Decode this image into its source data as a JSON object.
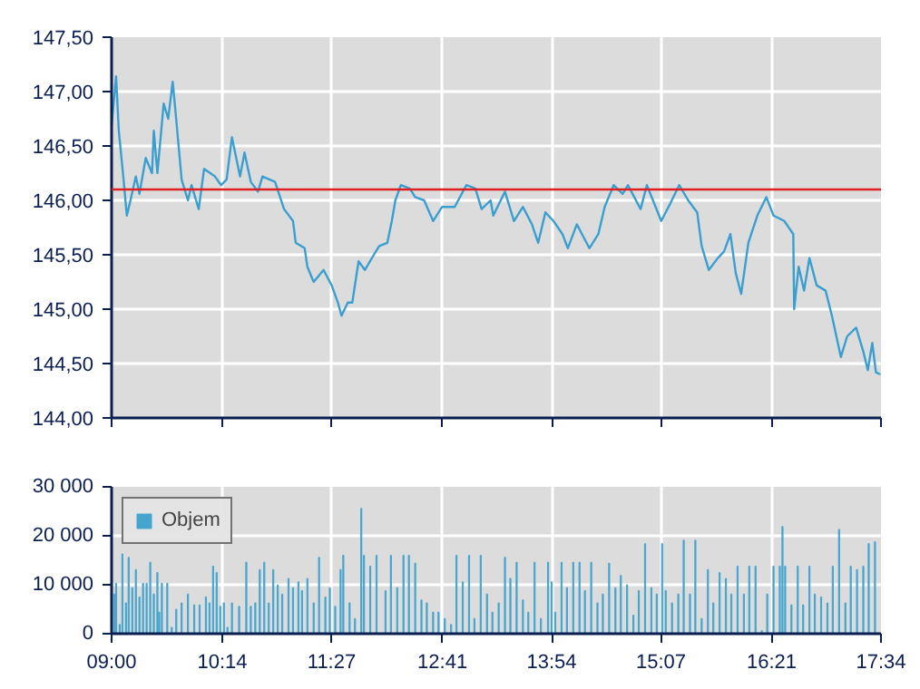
{
  "chart_data": [
    {
      "type": "line",
      "color": "#3a9fd0",
      "xlim": [
        9.0,
        17.5667
      ],
      "ylim": [
        144.0,
        147.5
      ],
      "xticks": [
        {
          "value": 9.0,
          "label": null
        },
        {
          "value": 10.2333,
          "label": null
        },
        {
          "value": 11.45,
          "label": null
        },
        {
          "value": 12.6833,
          "label": null
        },
        {
          "value": 13.9,
          "label": null
        },
        {
          "value": 15.1167,
          "label": null
        },
        {
          "value": 16.35,
          "label": null
        },
        {
          "value": 17.5667,
          "label": null
        }
      ],
      "yticks": [
        {
          "value": 144.0,
          "label": "144,00"
        },
        {
          "value": 144.5,
          "label": "144,50"
        },
        {
          "value": 145.0,
          "label": "145,00"
        },
        {
          "value": 145.5,
          "label": "145,50"
        },
        {
          "value": 146.0,
          "label": "146,00"
        },
        {
          "value": 146.5,
          "label": "146,50"
        },
        {
          "value": 147.0,
          "label": "147,00"
        },
        {
          "value": 147.5,
          "label": "147,50"
        }
      ],
      "tick_labels": "y",
      "grid": true,
      "ref_lines": [
        {
          "axis": "y",
          "value": 146.1,
          "color": "#e02020"
        }
      ],
      "x": [
        9.0,
        9.05,
        9.08,
        9.13,
        9.17,
        9.21,
        9.27,
        9.31,
        9.38,
        9.45,
        9.47,
        9.51,
        9.58,
        9.63,
        9.68,
        9.71,
        9.78,
        9.85,
        9.89,
        9.97,
        10.03,
        10.15,
        10.22,
        10.28,
        10.34,
        10.43,
        10.48,
        10.55,
        10.63,
        10.68,
        10.82,
        10.92,
        11.02,
        11.05,
        11.15,
        11.18,
        11.25,
        11.36,
        11.45,
        11.52,
        11.56,
        11.63,
        11.68,
        11.75,
        11.82,
        11.92,
        11.98,
        12.07,
        12.12,
        12.16,
        12.22,
        12.32,
        12.38,
        12.48,
        12.58,
        12.68,
        12.82,
        12.95,
        13.05,
        13.12,
        13.22,
        13.25,
        13.38,
        13.48,
        13.58,
        13.68,
        13.75,
        13.83,
        13.92,
        14.02,
        14.08,
        14.18,
        14.32,
        14.42,
        14.49,
        14.59,
        14.69,
        14.75,
        14.89,
        14.96,
        15.12,
        15.22,
        15.32,
        15.42,
        15.52,
        15.57,
        15.65,
        15.75,
        15.82,
        15.89,
        15.95,
        16.01,
        16.09,
        16.19,
        16.29,
        16.37,
        16.49,
        16.59,
        16.6,
        16.65,
        16.71,
        16.77,
        16.85,
        16.95,
        17.02,
        17.12,
        17.19,
        17.29,
        17.37,
        17.42,
        17.47,
        17.51,
        17.56
      ],
      "values": [
        146.69,
        147.14,
        146.64,
        146.22,
        145.86,
        146.0,
        146.22,
        146.06,
        146.39,
        146.25,
        146.64,
        146.25,
        146.89,
        146.75,
        147.09,
        146.83,
        146.19,
        146.0,
        146.14,
        145.92,
        146.29,
        146.22,
        146.14,
        146.19,
        146.58,
        146.22,
        146.44,
        146.17,
        146.08,
        146.22,
        146.17,
        145.92,
        145.81,
        145.61,
        145.56,
        145.39,
        145.25,
        145.36,
        145.22,
        145.06,
        144.94,
        145.06,
        145.06,
        145.44,
        145.36,
        145.5,
        145.58,
        145.61,
        145.81,
        146.0,
        146.14,
        146.11,
        146.03,
        146.0,
        145.81,
        145.94,
        145.94,
        146.14,
        146.11,
        145.92,
        146.0,
        145.86,
        146.08,
        145.81,
        145.94,
        145.78,
        145.61,
        145.89,
        145.81,
        145.69,
        145.56,
        145.78,
        145.56,
        145.69,
        145.94,
        146.14,
        146.06,
        146.14,
        145.92,
        146.14,
        145.81,
        145.97,
        146.14,
        146.0,
        145.89,
        145.58,
        145.36,
        145.47,
        145.53,
        145.69,
        145.33,
        145.14,
        145.61,
        145.86,
        146.03,
        145.86,
        145.81,
        145.69,
        145.0,
        145.39,
        145.17,
        145.47,
        145.22,
        145.17,
        144.94,
        144.56,
        144.75,
        144.83,
        144.61,
        144.44,
        144.69,
        144.42,
        144.4
      ]
    },
    {
      "type": "bar",
      "xlim": [
        9.0,
        17.5667
      ],
      "ylim": [
        0,
        30000
      ],
      "xticks": [
        {
          "value": 9.0,
          "label": "09:00"
        },
        {
          "value": 10.2333,
          "label": "10:14"
        },
        {
          "value": 11.45,
          "label": "11:27"
        },
        {
          "value": 12.6833,
          "label": "12:41"
        },
        {
          "value": 13.9,
          "label": "13:54"
        },
        {
          "value": 15.1167,
          "label": "15:07"
        },
        {
          "value": 16.35,
          "label": "16:21"
        },
        {
          "value": 17.5667,
          "label": "17:34"
        }
      ],
      "yticks": [
        {
          "value": 0,
          "label": "0"
        },
        {
          "value": 10000,
          "label": "10 000"
        },
        {
          "value": 20000,
          "label": "20 000"
        },
        {
          "value": 30000,
          "label": "30 000"
        }
      ],
      "grid": true,
      "legend": "top left",
      "x": [
        9.03,
        9.05,
        9.09,
        9.12,
        9.16,
        9.19,
        9.23,
        9.27,
        9.31,
        9.35,
        9.39,
        9.43,
        9.47,
        9.51,
        9.53,
        9.56,
        9.62,
        9.67,
        9.72,
        9.78,
        9.85,
        9.92,
        9.98,
        10.05,
        10.09,
        10.13,
        10.17,
        10.21,
        10.25,
        10.29,
        10.34,
        10.42,
        10.5,
        10.55,
        10.6,
        10.65,
        10.7,
        10.75,
        10.8,
        10.85,
        10.9,
        10.97,
        11.02,
        11.08,
        11.12,
        11.18,
        11.25,
        11.31,
        11.38,
        11.43,
        11.49,
        11.55,
        11.58,
        11.65,
        11.71,
        11.78,
        11.81,
        11.88,
        11.95,
        12.05,
        12.11,
        12.18,
        12.25,
        12.31,
        12.38,
        12.45,
        12.51,
        12.58,
        12.64,
        12.71,
        12.78,
        12.84,
        12.91,
        12.98,
        13.04,
        13.11,
        13.18,
        13.24,
        13.31,
        13.38,
        13.44,
        13.51,
        13.58,
        13.64,
        13.71,
        13.78,
        13.86,
        13.9,
        13.94,
        14.01,
        14.07,
        14.14,
        14.21,
        14.27,
        14.34,
        14.41,
        14.47,
        14.54,
        14.61,
        14.67,
        14.74,
        14.81,
        14.87,
        14.94,
        15.01,
        15.07,
        15.13,
        15.17,
        15.24,
        15.31,
        15.37,
        15.44,
        15.5,
        15.57,
        15.64,
        15.7,
        15.77,
        15.84,
        15.9,
        15.97,
        16.04,
        16.1,
        16.17,
        16.24,
        16.3,
        16.37,
        16.44,
        16.47,
        16.5,
        16.57,
        16.64,
        16.7,
        16.77,
        16.83,
        16.9,
        16.97,
        17.03,
        17.1,
        17.17,
        17.23,
        17.3,
        17.37,
        17.43,
        17.5
      ],
      "series": [
        {
          "name": "Objem",
          "color": "#45a5cf",
          "values": [
            8100,
            10300,
            1900,
            16300,
            6300,
            15600,
            9400,
            13100,
            7500,
            10300,
            10300,
            14600,
            8100,
            12500,
            4400,
            10300,
            10300,
            1300,
            5000,
            6300,
            8100,
            5900,
            5900,
            7500,
            6300,
            13800,
            12500,
            5600,
            6300,
            1300,
            6300,
            5600,
            14600,
            5600,
            6300,
            13100,
            14600,
            6300,
            13100,
            10000,
            8100,
            11300,
            9400,
            10600,
            8800,
            11300,
            6300,
            15600,
            7500,
            9400,
            5600,
            13100,
            16000,
            6300,
            3100,
            25600,
            16000,
            13800,
            16000,
            8800,
            16000,
            9400,
            16000,
            16000,
            14400,
            6900,
            6300,
            4400,
            4400,
            3100,
            1900,
            16000,
            10600,
            16000,
            3100,
            16000,
            8100,
            4400,
            6300,
            15600,
            11300,
            14600,
            6900,
            4400,
            14600,
            3100,
            14600,
            10600,
            4400,
            14600,
            9400,
            14600,
            14600,
            8800,
            14600,
            6300,
            8100,
            14400,
            9400,
            11900,
            10000,
            3800,
            8800,
            18400,
            9400,
            8100,
            18400,
            8800,
            6300,
            8100,
            19100,
            8100,
            19100,
            3100,
            13100,
            6300,
            12500,
            11300,
            8100,
            13800,
            8100,
            13800,
            13800,
            600,
            8100,
            13800,
            13800,
            21900,
            13800,
            5900,
            13800,
            5900,
            13800,
            8100,
            7500,
            6300,
            13800,
            21300,
            6300,
            13800,
            13100,
            13800,
            18400,
            18800
          ]
        }
      ]
    }
  ]
}
